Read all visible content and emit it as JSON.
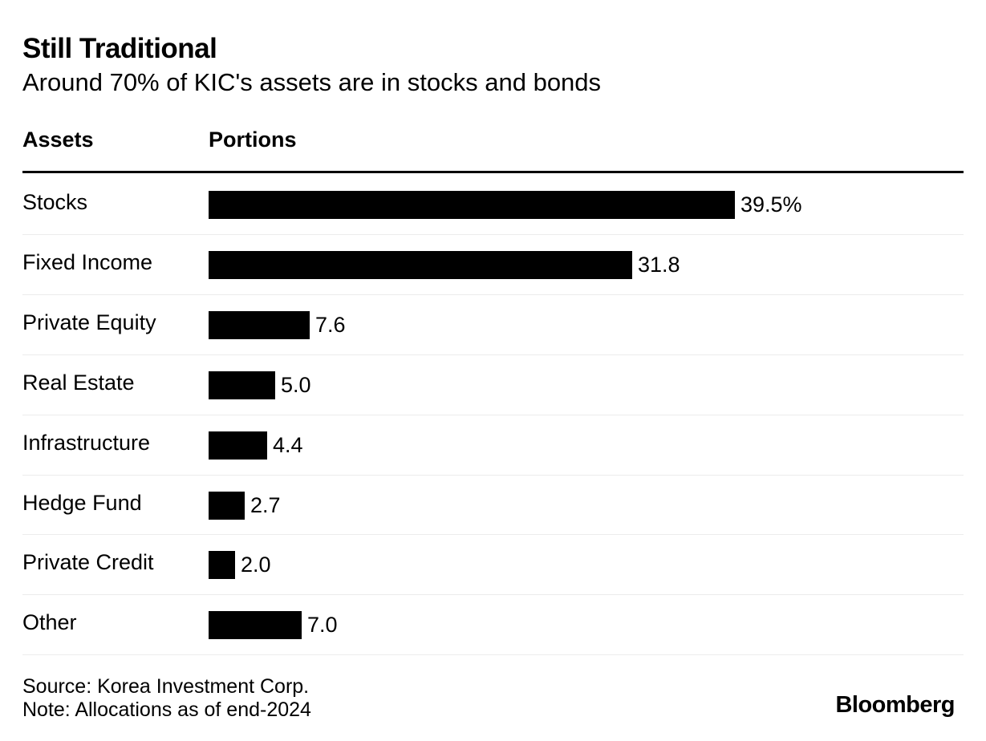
{
  "chart_data": {
    "type": "bar",
    "orientation": "horizontal",
    "title": "Still Traditional",
    "subtitle": "Around 70% of KIC's assets are in stocks and bonds",
    "column_headers": {
      "category": "Assets",
      "value": "Portions"
    },
    "categories": [
      "Stocks",
      "Fixed Income",
      "Private Equity",
      "Real Estate",
      "Infrastructure",
      "Hedge Fund",
      "Private Credit",
      "Other"
    ],
    "values": [
      39.5,
      31.8,
      7.6,
      5.0,
      4.4,
      2.7,
      2.0,
      7.0
    ],
    "value_labels": [
      "39.5%",
      "31.8",
      "7.6",
      "5.0",
      "4.4",
      "2.7",
      "2.0",
      "7.0"
    ],
    "unit": "%",
    "xlim": [
      0,
      39.5
    ],
    "grid": false,
    "bar_color": "#000000"
  },
  "footer": {
    "source": "Source: Korea Investment Corp.",
    "note": "Note: Allocations as of end-2024",
    "brand": "Bloomberg"
  }
}
